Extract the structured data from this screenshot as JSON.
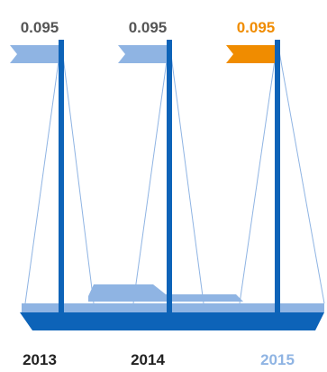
{
  "colors": {
    "flag_default": "#8fb4e3",
    "flag_highlight": "#f08c00",
    "mast": "#0d63b8",
    "rope": "#8fb4e3",
    "hull": "#0d63b8",
    "deck": "#8fb4e3",
    "value_default": "#555555",
    "value_highlight": "#f08c00",
    "year_default": "#222222",
    "year_highlight": "#8fb4e3"
  },
  "chart_data": {
    "type": "bar",
    "categories": [
      "2013",
      "2014",
      "2015"
    ],
    "values": [
      0.095,
      0.095,
      0.095
    ],
    "value_labels": [
      "0.095",
      "0.095",
      "0.095"
    ],
    "highlight_index": 2,
    "title": "",
    "xlabel": "",
    "ylabel": ""
  }
}
